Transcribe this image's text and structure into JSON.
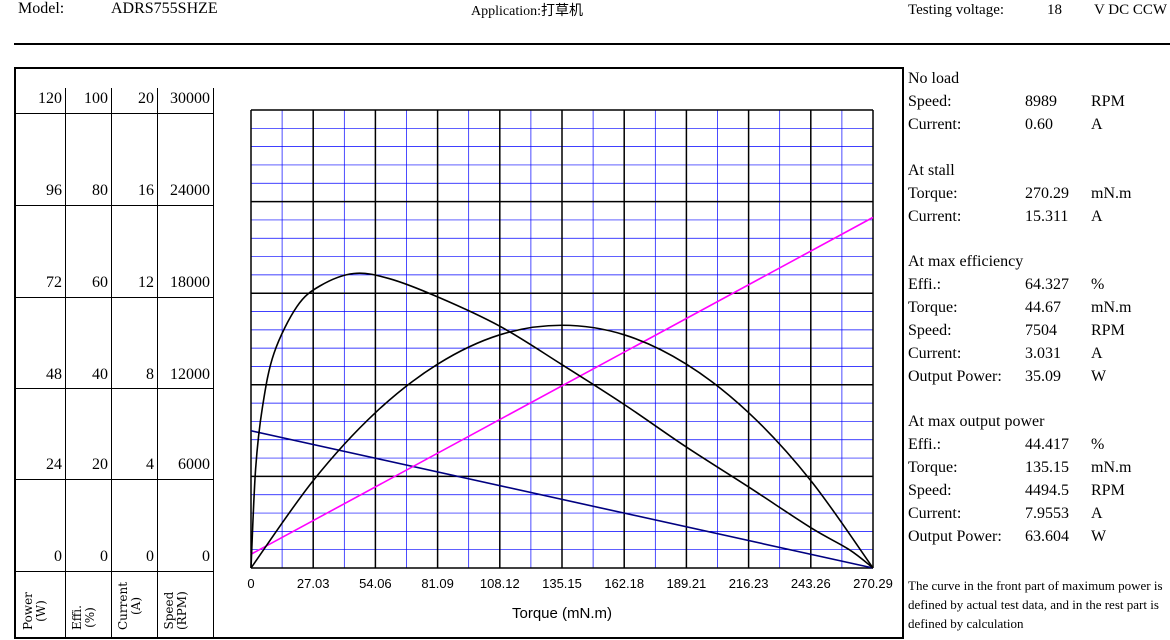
{
  "header": {
    "model_label": "Model:",
    "model_value": "ADRS755SHZE",
    "application_label": "Application:",
    "application_value": "打草机",
    "voltage_label": "Testing voltage:",
    "voltage_value": "18",
    "voltage_unit": "V DC CCW"
  },
  "axes": {
    "columns": [
      {
        "label": "Power\n(W)",
        "ticks": [
          "120",
          "96",
          "72",
          "48",
          "24",
          "0"
        ]
      },
      {
        "label": "Effi.\n(%)",
        "ticks": [
          "100",
          "80",
          "60",
          "40",
          "20",
          "0"
        ]
      },
      {
        "label": "Current\n(A)",
        "ticks": [
          "20",
          "16",
          "12",
          "8",
          "4",
          "0"
        ]
      },
      {
        "label": "Speed\n(RPM)",
        "ticks": [
          "30000",
          "24000",
          "18000",
          "12000",
          "6000",
          "0"
        ]
      }
    ]
  },
  "chart_data": {
    "type": "line",
    "xlabel": "Torque (mN.m)",
    "xticks": [
      "0",
      "27.03",
      "54.06",
      "81.09",
      "108.12",
      "135.15",
      "162.18",
      "189.21",
      "216.23",
      "243.26",
      "270.29"
    ],
    "xlim": [
      0,
      270.29
    ],
    "grid": true,
    "colors": {
      "speed": "#000080",
      "current": "#ff00ff",
      "efficiency": "#000000",
      "power": "#000000",
      "grid_minor": "#0000ff",
      "grid_major": "#000000"
    },
    "series": [
      {
        "key": "speed",
        "axis": "Speed (RPM)",
        "ylim": [
          0,
          30000
        ],
        "x": [
          0,
          270.29
        ],
        "values": [
          8989,
          0
        ]
      },
      {
        "key": "current",
        "axis": "Current (A)",
        "ylim": [
          0,
          20
        ],
        "x": [
          0,
          270.29
        ],
        "values": [
          0.6,
          15.311
        ]
      },
      {
        "key": "efficiency",
        "axis": "Effi. (%)",
        "ylim": [
          0,
          100
        ],
        "x": [
          0,
          2,
          5,
          10,
          20,
          30,
          44.67,
          60,
          81.09,
          108.12,
          135.15,
          162.18,
          189.21,
          216.23,
          243.26,
          260,
          270.29
        ],
        "values": [
          0,
          21.6,
          35.2,
          46.9,
          57.1,
          61.6,
          64.3,
          63.2,
          59.2,
          52.8,
          44.4,
          35.7,
          26.4,
          17.7,
          8.8,
          4.0,
          0
        ]
      },
      {
        "key": "power",
        "axis": "Power (W)",
        "ylim": [
          0,
          120
        ],
        "x": [
          0,
          27.03,
          54.06,
          81.09,
          108.12,
          135.15,
          162.18,
          189.21,
          216.23,
          243.26,
          270.29
        ],
        "values": [
          0,
          22.9,
          40.7,
          53.4,
          61.1,
          63.6,
          61.1,
          53.4,
          40.7,
          22.9,
          0
        ]
      }
    ]
  },
  "specs": {
    "no_load": {
      "title": "No load",
      "rows": [
        {
          "label": "Speed:",
          "value": "8989",
          "unit": "RPM"
        },
        {
          "label": "Current:",
          "value": "0.60",
          "unit": "A"
        }
      ]
    },
    "stall": {
      "title": "At stall",
      "rows": [
        {
          "label": "Torque:",
          "value": "270.29",
          "unit": "mN.m"
        },
        {
          "label": "Current:",
          "value": "15.311",
          "unit": "A"
        }
      ]
    },
    "max_eff": {
      "title": "At max efficiency",
      "rows": [
        {
          "label": "Effi.:",
          "value": "64.327",
          "unit": "%"
        },
        {
          "label": "Torque:",
          "value": "44.67",
          "unit": "mN.m"
        },
        {
          "label": "Speed:",
          "value": "7504",
          "unit": "RPM"
        },
        {
          "label": "Current:",
          "value": "3.031",
          "unit": "A"
        },
        {
          "label": "Output Power:",
          "value": "35.09",
          "unit": "W"
        }
      ]
    },
    "max_power": {
      "title": "At max output power",
      "rows": [
        {
          "label": "Effi.:",
          "value": "44.417",
          "unit": "%"
        },
        {
          "label": "Torque:",
          "value": "135.15",
          "unit": "mN.m"
        },
        {
          "label": "Speed:",
          "value": "4494.5",
          "unit": "RPM"
        },
        {
          "label": "Current:",
          "value": "7.9553",
          "unit": "A"
        },
        {
          "label": "Output Power:",
          "value": "63.604",
          "unit": "W"
        }
      ]
    }
  },
  "note": "The curve in the front part of maximum power is defined by actual test data, and in the rest part is defined by calculation"
}
